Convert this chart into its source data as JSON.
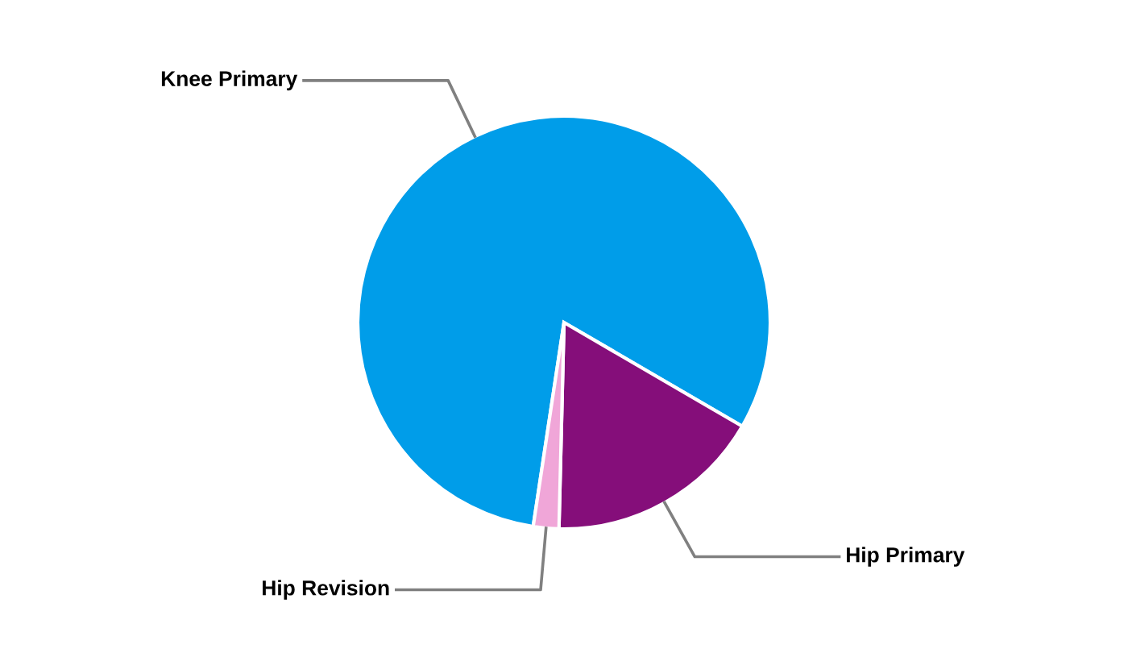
{
  "chart_data": {
    "type": "pie",
    "categories": [
      "Knee Primary",
      "Hip Primary",
      "Hip Revision"
    ],
    "values": [
      81,
      17,
      2
    ],
    "colors": [
      "#009de9",
      "#850e7a",
      "#f0a6d8"
    ]
  }
}
